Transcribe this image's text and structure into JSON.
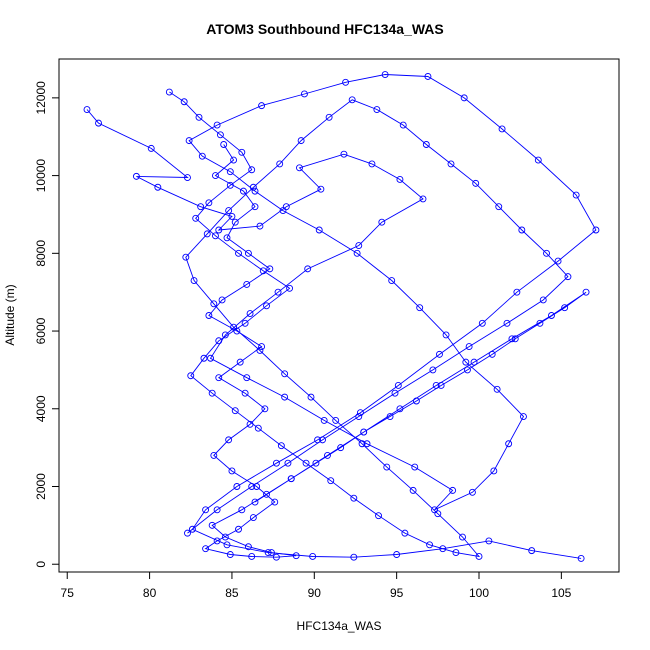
{
  "chart_data": {
    "type": "line",
    "title": "ATOM3 Southbound HFC134a_WAS",
    "xlabel": "HFC134a_WAS",
    "ylabel": "Altitude (m)",
    "xlim": [
      74.5,
      108.5
    ],
    "ylim": [
      -200,
      13000
    ],
    "xticks": [
      75,
      80,
      85,
      90,
      95,
      100,
      105
    ],
    "yticks": [
      0,
      2000,
      4000,
      6000,
      8000,
      10000,
      12000
    ],
    "grid": false,
    "series_color": "#0000ff",
    "markers": "open-circle",
    "series": [
      {
        "x": [
          76.2,
          76.9,
          80.1,
          82.3,
          79.2,
          80.5,
          83.1,
          85.0,
          84.2,
          86.7,
          88.3,
          90.4,
          89.1,
          91.8,
          93.5,
          95.2,
          96.6,
          94.1,
          92.7,
          89.6,
          87.8,
          86.1,
          84.6,
          83.7,
          85.9,
          88.2,
          90.6,
          93.2,
          96.1,
          98.4,
          97.3,
          99.6,
          100.9,
          101.8,
          102.7,
          101.1,
          99.2,
          98.0,
          96.4,
          94.7,
          92.6,
          90.3,
          88.1,
          86.4,
          84.9,
          83.2,
          82.4,
          84.1,
          86.8,
          89.4,
          91.9,
          94.3,
          96.9,
          99.1,
          101.4,
          103.6,
          105.9,
          107.1,
          104.8,
          102.3,
          100.2,
          97.6,
          95.1,
          92.8,
          90.2,
          87.7,
          85.3,
          83.4,
          82.6,
          84.7,
          87.2,
          89.9,
          92.4,
          95.0,
          97.8,
          100.6,
          103.2,
          106.2
        ],
        "y": [
          11700,
          11350,
          10700,
          9950,
          9980,
          9700,
          9200,
          8950,
          8600,
          8700,
          9200,
          9650,
          10200,
          10550,
          10300,
          9900,
          9400,
          8800,
          8200,
          7600,
          7000,
          6450,
          5900,
          5300,
          4800,
          4300,
          3700,
          3100,
          2500,
          1900,
          1400,
          1850,
          2400,
          3100,
          3800,
          4500,
          5200,
          5900,
          6600,
          7300,
          8000,
          8600,
          9100,
          9600,
          10100,
          10500,
          10900,
          11300,
          11800,
          12100,
          12400,
          12600,
          12550,
          12000,
          11200,
          10400,
          9500,
          8600,
          7800,
          7000,
          6200,
          5400,
          4600,
          3900,
          3200,
          2600,
          2000,
          1400,
          900,
          500,
          300,
          200,
          180,
          250,
          400,
          600,
          350,
          150
        ]
      },
      {
        "x": [
          81.2,
          82.1,
          83.0,
          84.3,
          85.6,
          86.2,
          84.9,
          83.6,
          82.8,
          84.0,
          85.4,
          86.9,
          88.5,
          87.1,
          85.8,
          84.2,
          83.3,
          82.5,
          83.8,
          85.2,
          86.6,
          88.0,
          89.5,
          91.0,
          92.4,
          93.9,
          95.5,
          97.0,
          98.6,
          100.0,
          99.0,
          97.5,
          96.0,
          94.4,
          92.9,
          91.3,
          89.8,
          88.2,
          86.7,
          85.1,
          83.9,
          82.7,
          82.2,
          83.5,
          84.8,
          86.3,
          87.9,
          89.2,
          90.9,
          92.3,
          93.8,
          95.4,
          96.8,
          98.3,
          99.8,
          101.2,
          102.6,
          104.1,
          105.4,
          103.9,
          101.7,
          99.4,
          97.2,
          94.9,
          92.7,
          90.5,
          88.4,
          86.2,
          84.1,
          82.3
        ],
        "y": [
          12150,
          11900,
          11500,
          11050,
          10600,
          10150,
          9750,
          9300,
          8900,
          8450,
          8000,
          7550,
          7100,
          6650,
          6200,
          5750,
          5300,
          4850,
          4400,
          3950,
          3500,
          3050,
          2600,
          2150,
          1700,
          1250,
          800,
          500,
          300,
          200,
          700,
          1300,
          1900,
          2500,
          3100,
          3700,
          4300,
          4900,
          5500,
          6100,
          6700,
          7300,
          7900,
          8500,
          9100,
          9700,
          10300,
          10900,
          11500,
          11950,
          11700,
          11300,
          10800,
          10300,
          9800,
          9200,
          8600,
          8000,
          7400,
          6800,
          6200,
          5600,
          5000,
          4400,
          3800,
          3200,
          2600,
          2000,
          1400,
          800
        ]
      },
      {
        "x": [
          84.5,
          85.1,
          84.0,
          85.7,
          86.4,
          85.2,
          84.7,
          86.0,
          87.3,
          85.9,
          84.4,
          83.6,
          85.3,
          86.8,
          85.5,
          84.2,
          85.8,
          87.0,
          86.1,
          84.8,
          83.9,
          85.0,
          86.5,
          87.6,
          86.3,
          85.4,
          84.1,
          83.4,
          84.9,
          86.2,
          87.7,
          88.9,
          87.4,
          86.0,
          84.6,
          83.8,
          85.6,
          87.1,
          88.6,
          90.1,
          91.6,
          93.0,
          94.6,
          96.2,
          97.7,
          99.3,
          100.8,
          102.2,
          103.7,
          105.2,
          106.5,
          104.4,
          102.0,
          99.7,
          97.4,
          95.2,
          93.0,
          90.8,
          88.6,
          86.4
        ],
        "y": [
          10800,
          10400,
          10000,
          9600,
          9200,
          8800,
          8400,
          8000,
          7600,
          7200,
          6800,
          6400,
          6000,
          5600,
          5200,
          4800,
          4400,
          4000,
          3600,
          3200,
          2800,
          2400,
          2000,
          1600,
          1200,
          900,
          600,
          400,
          250,
          200,
          180,
          220,
          300,
          450,
          700,
          1000,
          1400,
          1800,
          2200,
          2600,
          3000,
          3400,
          3800,
          4200,
          4600,
          5000,
          5400,
          5800,
          6200,
          6600,
          7000,
          6400,
          5800,
          5200,
          4600,
          4000,
          3400,
          2800,
          2200,
          1600
        ]
      }
    ]
  }
}
